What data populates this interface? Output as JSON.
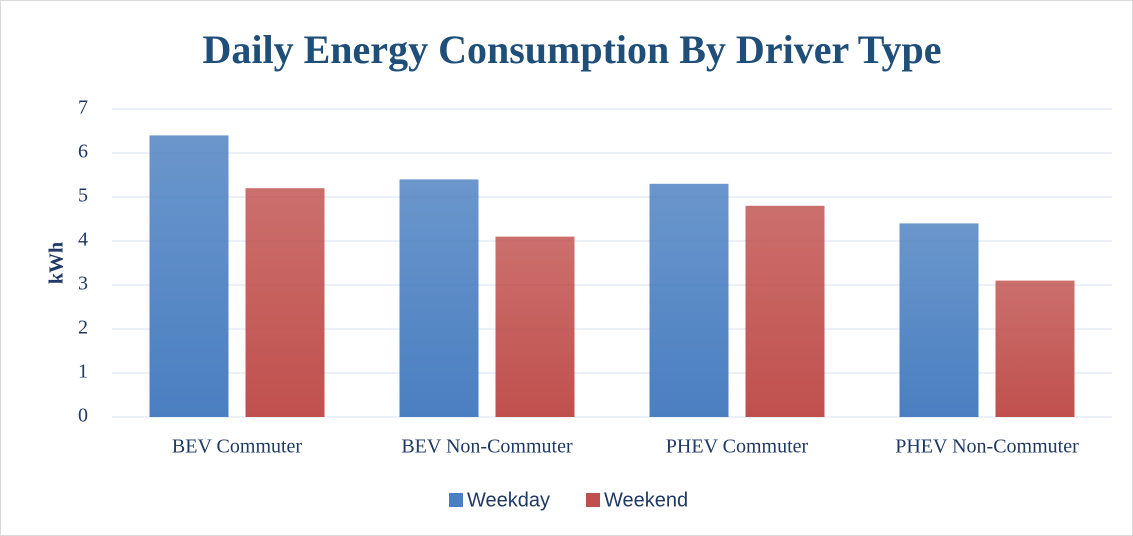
{
  "chart_data": {
    "type": "bar",
    "title": "Daily Energy Consumption By Driver Type",
    "y_label": "kWh",
    "categories": [
      "BEV Commuter",
      "BEV Non-Commuter",
      "PHEV Commuter",
      "PHEV Non-Commuter"
    ],
    "series": [
      {
        "name": "Weekday",
        "color": "#4a7fc1",
        "values": [
          6.4,
          5.4,
          5.3,
          4.4
        ]
      },
      {
        "name": "Weekend",
        "color": "#c0504d",
        "values": [
          5.2,
          4.1,
          4.8,
          3.1
        ]
      }
    ],
    "ylim": [
      0,
      7
    ],
    "yticks": [
      0,
      1,
      2,
      3,
      4,
      5,
      6,
      7
    ],
    "grid": true,
    "legend": "bottom"
  }
}
